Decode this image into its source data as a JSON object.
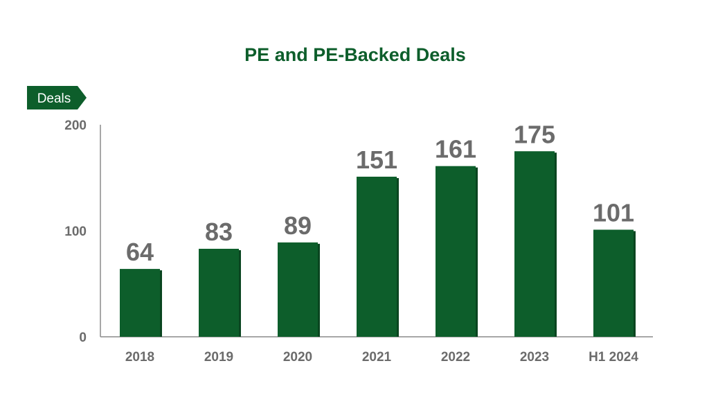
{
  "colors": {
    "bar": "#0d5e2b",
    "bar_shadow": "#0a4520",
    "title": "#0d5e2b",
    "text_gray": "#6b6b6b",
    "axis": "#8a8a8a",
    "tag_bg": "#0d5e2b",
    "tag_text": "#ffffff"
  },
  "chart_data": {
    "type": "bar",
    "title": "PE and PE-Backed Deals",
    "ylabel": "Deals",
    "xlabel": "",
    "categories": [
      "2018",
      "2019",
      "2020",
      "2021",
      "2022",
      "2023",
      "H1 2024"
    ],
    "values": [
      64,
      83,
      89,
      151,
      161,
      175,
      101
    ],
    "data_labels": [
      "64",
      "83",
      "89",
      "151",
      "161",
      "175",
      "101"
    ],
    "ylim": [
      0,
      200
    ],
    "yticks": [
      0,
      100,
      200
    ],
    "ytick_labels": [
      "0",
      "100",
      "200"
    ],
    "grid": false,
    "legend": "none"
  }
}
